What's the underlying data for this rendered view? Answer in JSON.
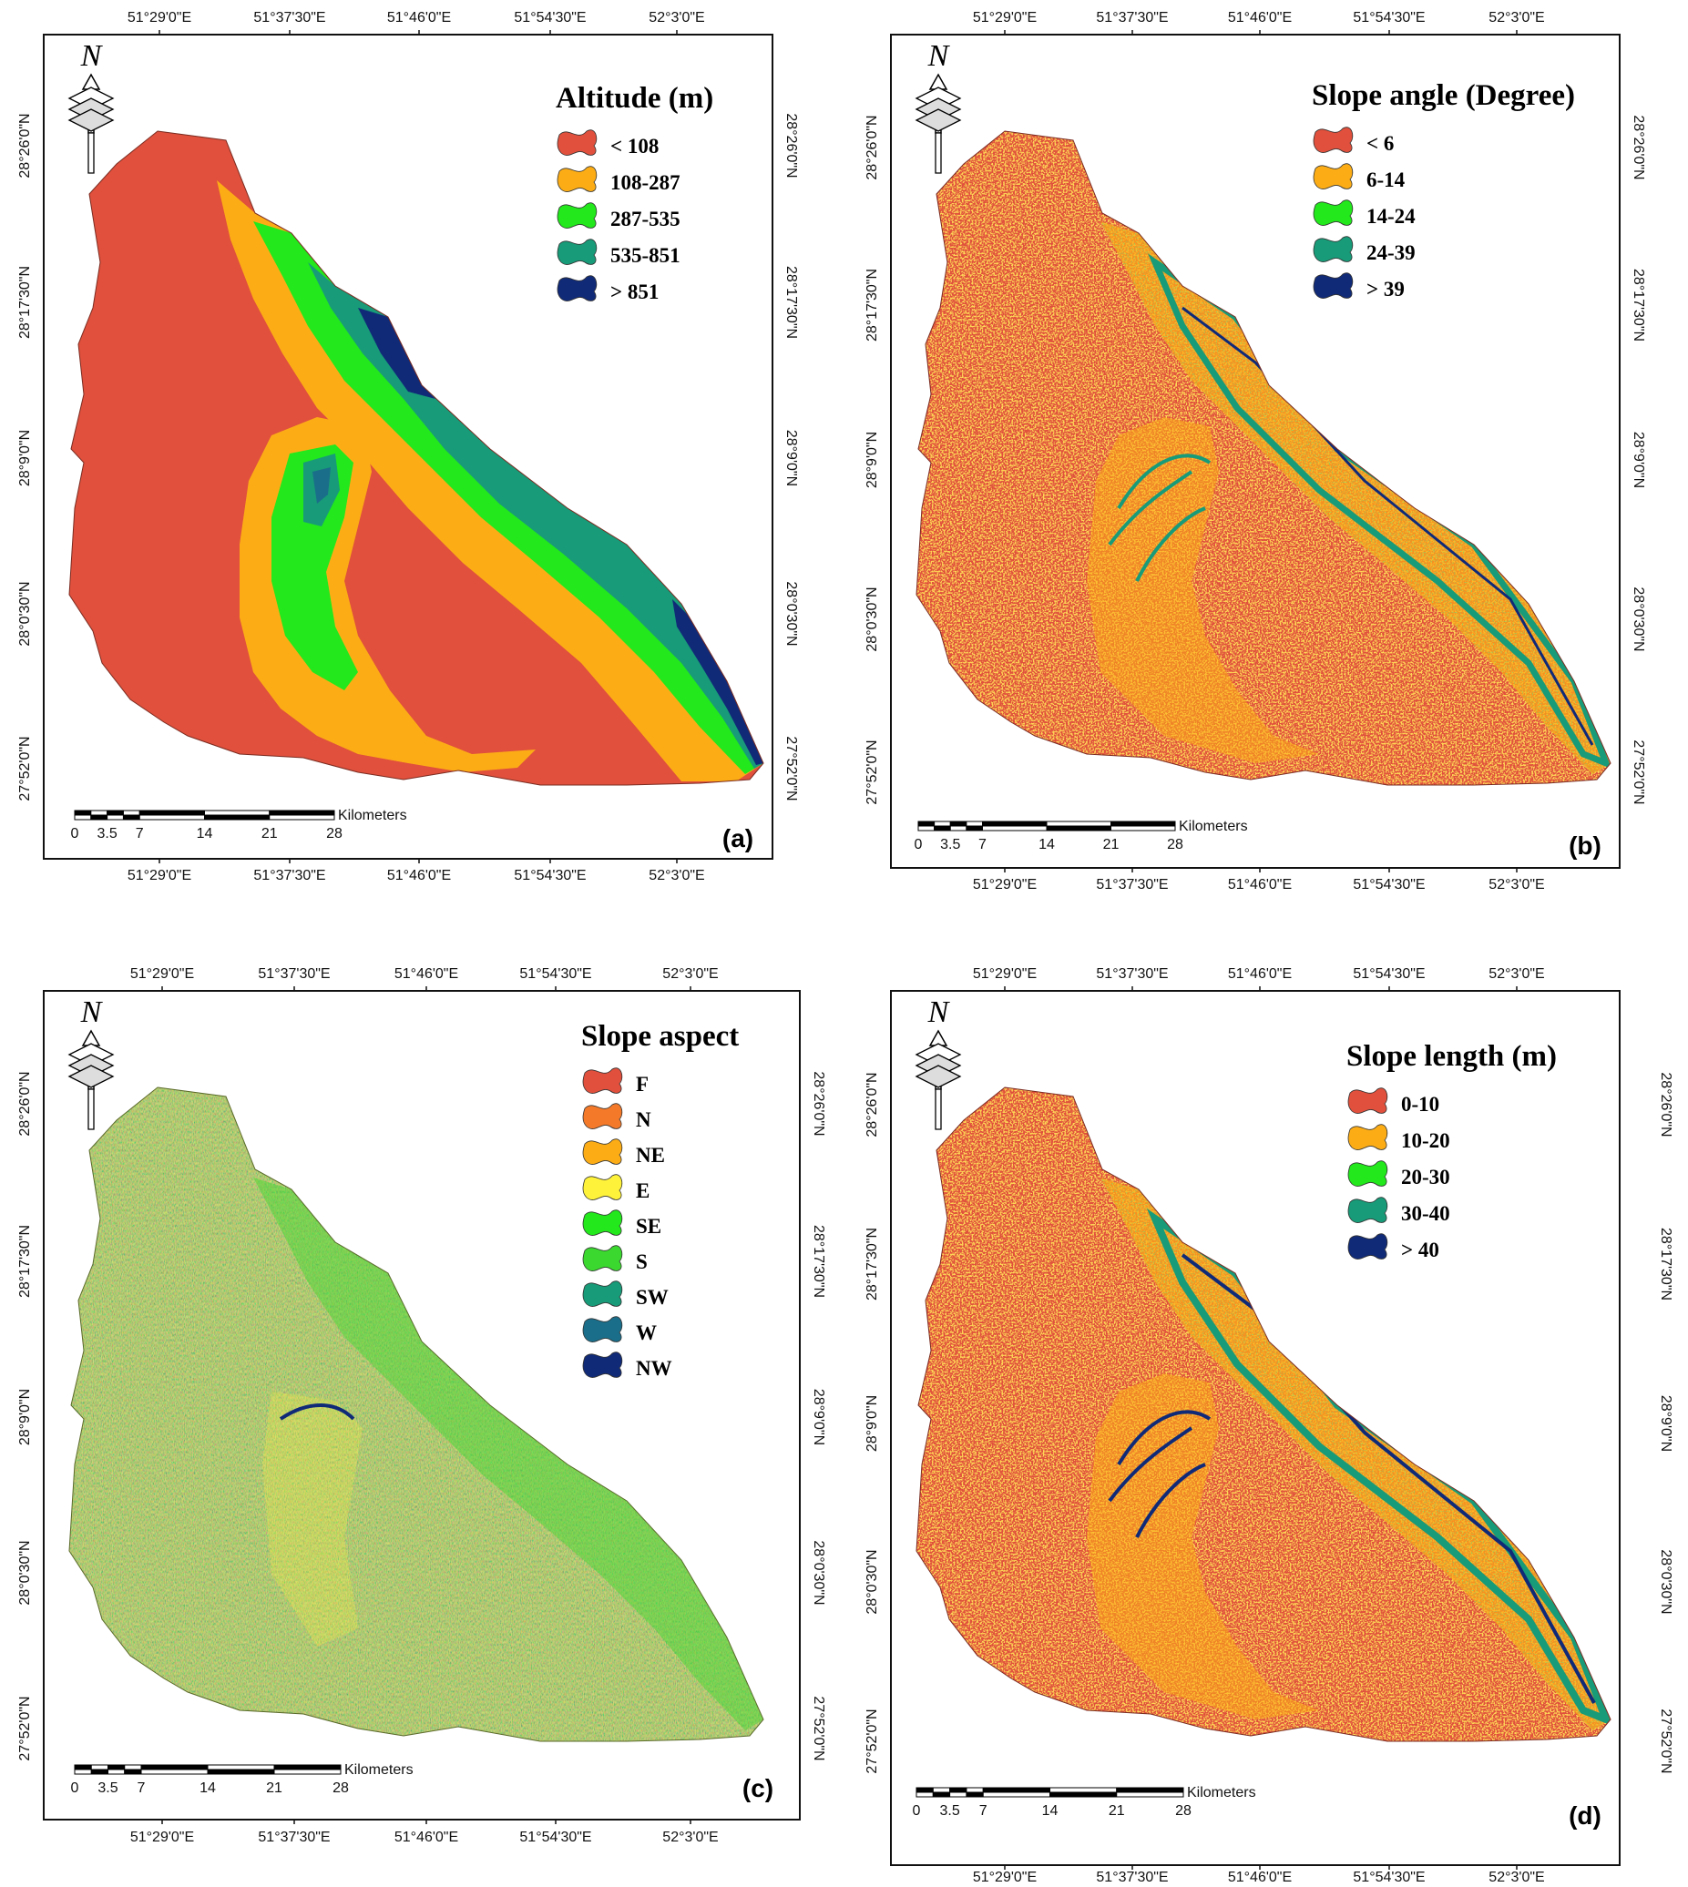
{
  "colors": {
    "red": "#e0503c",
    "orange": "#f47a2a",
    "amber": "#fcad16",
    "yellow": "#fff23a",
    "green": "#22e81c",
    "green2": "#3bd92f",
    "teal": "#189b78",
    "steel": "#1a6e8a",
    "navy": "#102a78"
  },
  "axes": {
    "lon_ticks": [
      "51°29'0\"E",
      "51°37'30\"E",
      "51°46'0\"E",
      "51°54'30\"E",
      "52°3'0\"E"
    ],
    "lat_ticks": [
      "28°26'0\"N",
      "28°17'30\"N",
      "28°9'0\"N",
      "28°0'30\"N",
      "27°52'0\"N"
    ]
  },
  "scale_bar": {
    "labels": [
      "0",
      "3.5",
      "7",
      "14",
      "21",
      "28"
    ],
    "unit": "Kilometers"
  },
  "north_arrow": {
    "letter": "N"
  },
  "panels": [
    {
      "id": "a",
      "letter": "(a)",
      "legend_title": "Altitude (m)",
      "map_style": "altitude",
      "classes": [
        {
          "label": "< 108",
          "color": "#e0503c"
        },
        {
          "label": "108-287",
          "color": "#fcad16"
        },
        {
          "label": "287-535",
          "color": "#22e81c"
        },
        {
          "label": "535-851",
          "color": "#189b78"
        },
        {
          "label": "> 851",
          "color": "#102a78"
        }
      ]
    },
    {
      "id": "b",
      "letter": "(b)",
      "legend_title": "Slope angle (Degree)",
      "map_style": "slope",
      "classes": [
        {
          "label": "< 6",
          "color": "#e0503c"
        },
        {
          "label": "6-14",
          "color": "#fcad16"
        },
        {
          "label": "14-24",
          "color": "#22e81c"
        },
        {
          "label": "24-39",
          "color": "#189b78"
        },
        {
          "label": "> 39",
          "color": "#102a78"
        }
      ]
    },
    {
      "id": "c",
      "letter": "(c)",
      "legend_title": "Slope aspect",
      "map_style": "aspect",
      "classes": [
        {
          "label": "F",
          "color": "#e0503c"
        },
        {
          "label": "N",
          "color": "#f47a2a"
        },
        {
          "label": "NE",
          "color": "#fcad16"
        },
        {
          "label": "E",
          "color": "#fff23a"
        },
        {
          "label": "SE",
          "color": "#22e81c"
        },
        {
          "label": "S",
          "color": "#3bd92f"
        },
        {
          "label": "SW",
          "color": "#189b78"
        },
        {
          "label": "W",
          "color": "#1a6e8a"
        },
        {
          "label": "NW",
          "color": "#102a78"
        }
      ]
    },
    {
      "id": "d",
      "letter": "(d)",
      "legend_title": "Slope length (m)",
      "map_style": "length",
      "classes": [
        {
          "label": "0-10",
          "color": "#e0503c"
        },
        {
          "label": "10-20",
          "color": "#fcad16"
        },
        {
          "label": "20-30",
          "color": "#22e81c"
        },
        {
          "label": "30-40",
          "color": "#189b78"
        },
        {
          "label": "> 40",
          "color": "#102a78"
        }
      ]
    }
  ]
}
